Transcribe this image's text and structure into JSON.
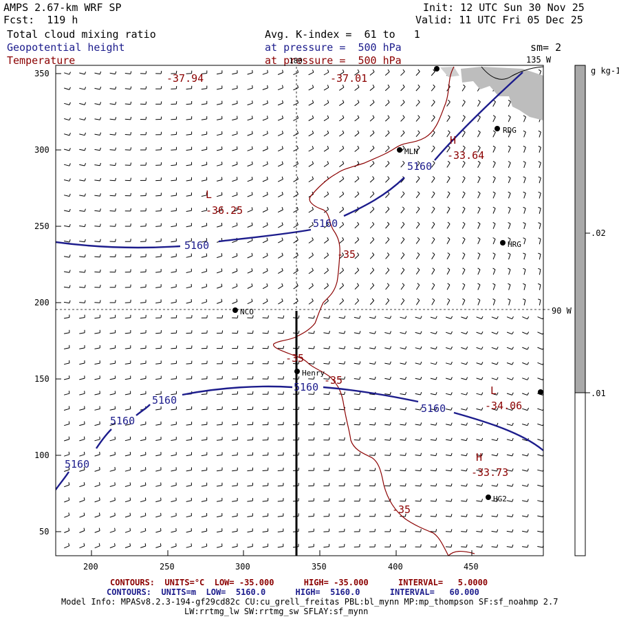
{
  "header": {
    "model": "AMPS 2.67-km WRF SP",
    "forecast": "Fcst:  119 h",
    "init": "Init: 12 UTC Sun 30 Nov 25",
    "valid": "Valid: 11 UTC Fri 05 Dec 25",
    "field1": "Total cloud mixing ratio",
    "field1_detail": "Avg. K-index =  61 to   1",
    "field2": "Geopotential height",
    "field2_detail": "at pressure =  500 hPa",
    "field3": "Temperature",
    "field3_detail": "at pressure =  500 hPa",
    "smoothing": "sm= 2"
  },
  "map": {
    "x_ticks": [
      "200",
      "250",
      "300",
      "350",
      "400",
      "450"
    ],
    "y_ticks": [
      "350",
      "300",
      "250",
      "200",
      "150",
      "100",
      "50"
    ],
    "meridian_labels": {
      "top": "180",
      "top_right": "135 W",
      "right": "90 W"
    },
    "stations": [
      {
        "id": "RDG",
        "label": "RDG"
      },
      {
        "id": "MLN",
        "label": "MLN"
      },
      {
        "id": "HRG",
        "label": "HRG"
      },
      {
        "id": "NCO",
        "label": "NCO"
      },
      {
        "id": "HENRY",
        "label": "Henry"
      },
      {
        "id": "HG2",
        "label": "HG2"
      }
    ],
    "height_labels": [
      "5160",
      "5160",
      "5160",
      "5160",
      "5160",
      "5160",
      "5160",
      "5160"
    ],
    "temp_labels": [
      "-37.94",
      "-37.01",
      "-35",
      "-35",
      "-35",
      "-35"
    ],
    "pressure_centers": [
      {
        "type": "L",
        "value": "-36.25"
      },
      {
        "type": "H",
        "value": "-33.64"
      },
      {
        "type": "L",
        "value": "-34.06"
      },
      {
        "type": "H",
        "value": "-33.73"
      }
    ]
  },
  "colorbar": {
    "unit": "g kg-1",
    "ticks": [
      ".02",
      ".01"
    ],
    "colors": {
      "high": "#a9a9a9",
      "low": "#ffffff"
    }
  },
  "footer": {
    "temp_contours": "CONTOURS:  UNITS=°C  LOW= -35.000      HIGH= -35.000      INTERVAL=   5.0000",
    "height_contours": "CONTOURS:  UNITS=m  LOW=  5160.0      HIGH=  5160.0      INTERVAL=   60.000",
    "model_info": "Model Info: MPASv8.2.3-194-gf29cd82c CU:cu_grell_freitas PBL:bl_mynn MP:mp_thompson SF:sf_noahmp 2.7",
    "model_info2": "LW:rrtmg_lw SW:rrtmg_sw SFLAY:sf_mynn"
  },
  "colors": {
    "height": "#1c1c8c",
    "temperature": "#8b0000",
    "cloud": "#bdbdbd"
  }
}
